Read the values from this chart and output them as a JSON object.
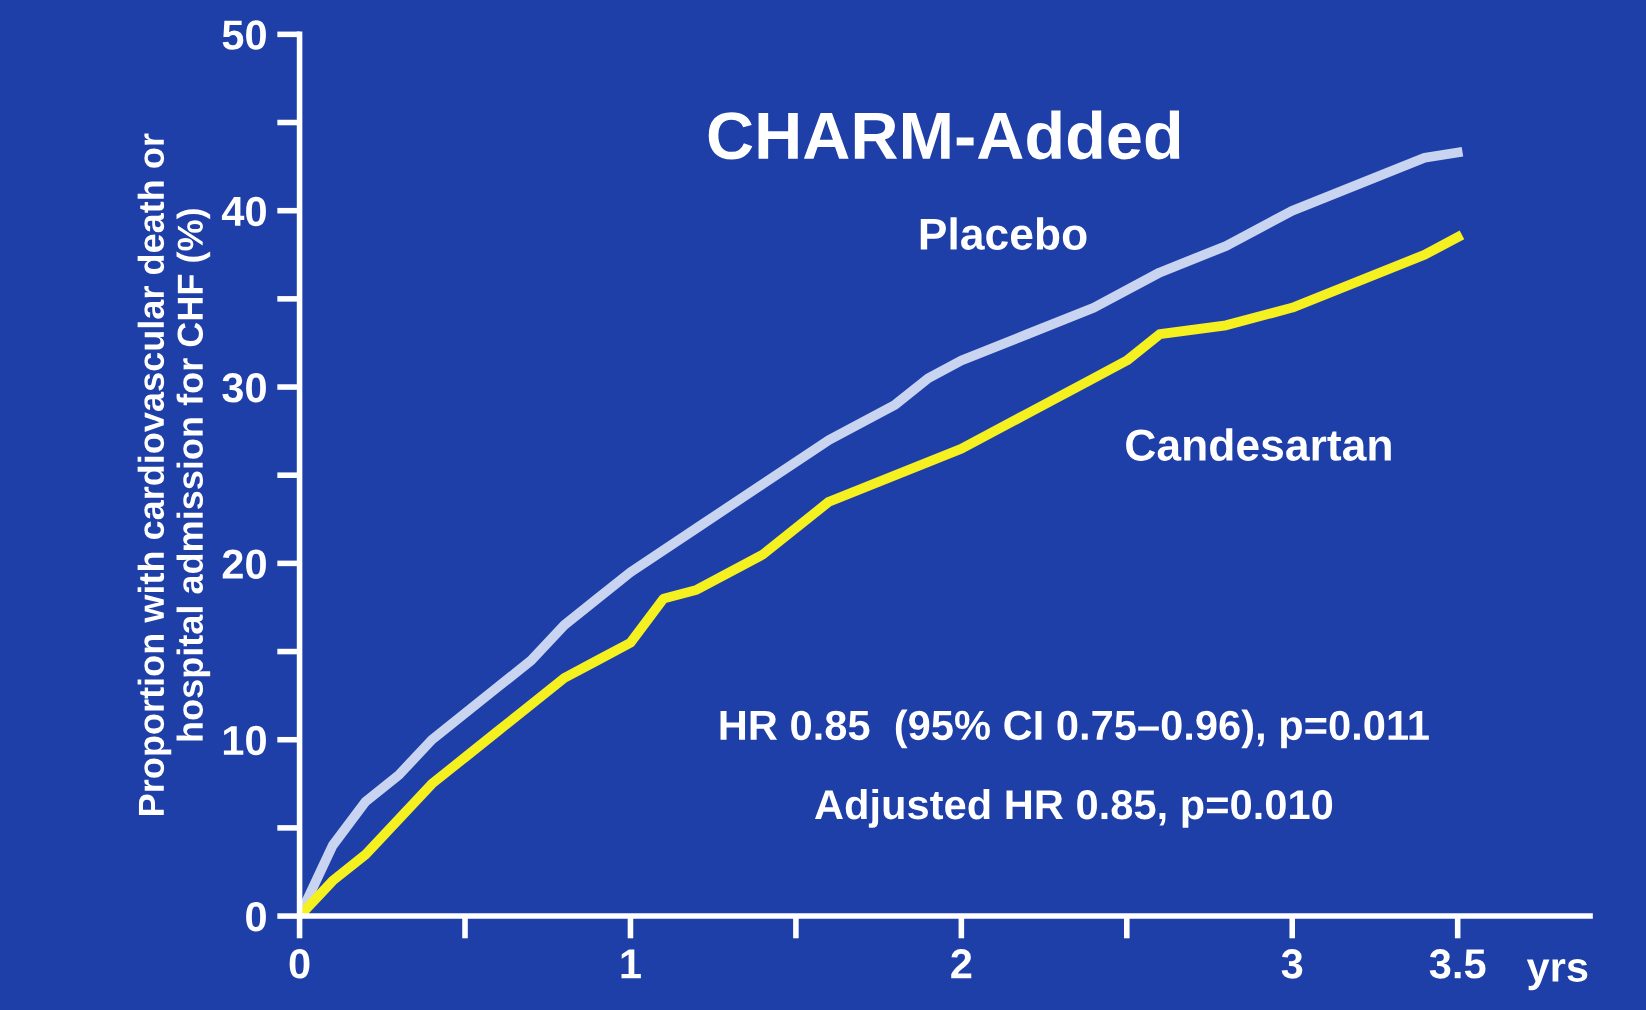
{
  "chart_data": {
    "type": "line",
    "title": "CHARM-Added",
    "xlabel": "yrs",
    "ylabel": "Proportion with cardiovascular death or\nhospital admission for CHF (%)",
    "xlim": [
      0,
      3.9
    ],
    "ylim": [
      0,
      50
    ],
    "xticks": [
      0,
      {
        "value": 0.5,
        "label": null
      },
      1,
      {
        "value": 1.5,
        "label": null
      },
      2,
      {
        "value": 2.5,
        "label": null
      },
      3,
      3.5
    ],
    "yticks": [
      0,
      {
        "value": 5,
        "label": null
      },
      10,
      {
        "value": 15,
        "label": null
      },
      20,
      {
        "value": 25,
        "label": null
      },
      30,
      {
        "value": 35,
        "label": null
      },
      40,
      {
        "value": 45,
        "label": null
      },
      50
    ],
    "grid": false,
    "legend": false,
    "marker": "none",
    "line_style": "solid",
    "series": [
      {
        "name": "Placebo",
        "color": "#c8d4f0",
        "x": [
          0,
          0.1,
          0.2,
          0.3,
          0.4,
          0.5,
          0.6,
          0.7,
          0.8,
          0.9,
          1.0,
          1.2,
          1.4,
          1.6,
          1.8,
          1.9,
          2.0,
          2.2,
          2.4,
          2.6,
          2.8,
          3.0,
          3.2,
          3.4,
          3.5
        ],
        "values": [
          0,
          4,
          6.5,
          8,
          10,
          11.5,
          13,
          14.5,
          16.5,
          18,
          19.5,
          22,
          24.5,
          27,
          29,
          30.5,
          31.5,
          33,
          34.5,
          36.5,
          38,
          40,
          41.5,
          43,
          43.3
        ]
      },
      {
        "name": "Candesartan",
        "color": "#f5f020",
        "x": [
          0,
          0.1,
          0.2,
          0.3,
          0.4,
          0.5,
          0.6,
          0.7,
          0.8,
          0.9,
          1.0,
          1.1,
          1.2,
          1.4,
          1.6,
          1.8,
          2.0,
          2.2,
          2.4,
          2.5,
          2.6,
          2.8,
          3.0,
          3.2,
          3.4,
          3.5
        ],
        "values": [
          0,
          2,
          3.5,
          5.5,
          7.5,
          9,
          10.5,
          12,
          13.5,
          14.5,
          15.5,
          18,
          18.5,
          20.5,
          23.5,
          25,
          26.5,
          28.5,
          30.5,
          31.5,
          33,
          33.5,
          34.5,
          36,
          37.5,
          38.5
        ]
      }
    ],
    "annotations": [
      "HR 0.85  (95% CI 0.75–0.96), p=0.011",
      "Adjusted HR 0.85, p=0.010"
    ]
  }
}
